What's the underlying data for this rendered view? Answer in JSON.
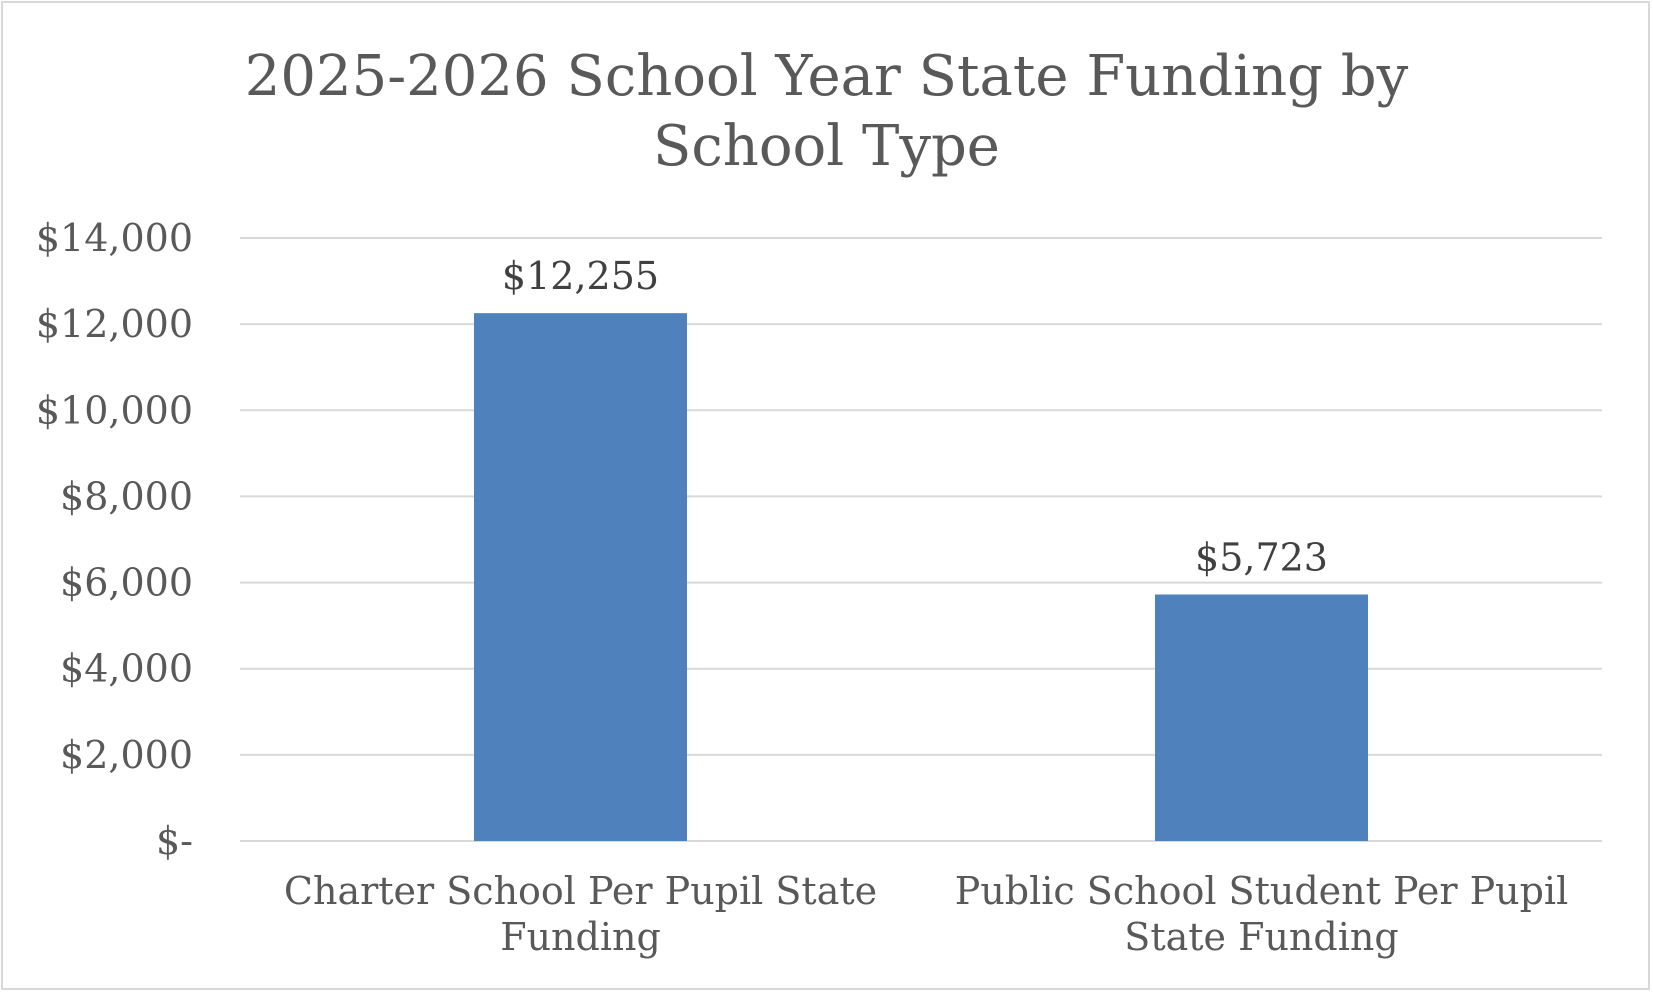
{
  "chart_data": {
    "type": "bar",
    "title": "2025-2026 School Year State Funding by\nSchool Type",
    "categories": [
      "Charter School Per Pupil State\nFunding",
      "Public School Student Per Pupil\nState Funding"
    ],
    "values": [
      12255,
      5723
    ],
    "data_labels": [
      "$12,255",
      "$5,723"
    ],
    "ylim": [
      0,
      14000
    ],
    "y_ticks": [
      0,
      2000,
      4000,
      6000,
      8000,
      10000,
      12000,
      14000
    ],
    "y_tick_labels": [
      "$-",
      "$2,000",
      "$4,000",
      "$6,000",
      "$8,000",
      "$10,000",
      "$12,000",
      "$14,000"
    ],
    "xlabel": "",
    "ylabel": "",
    "grid": true,
    "legend": "none",
    "bar_color": "#4f81bd",
    "grid_color": "#d9d9d9",
    "text_color": "#595959"
  }
}
